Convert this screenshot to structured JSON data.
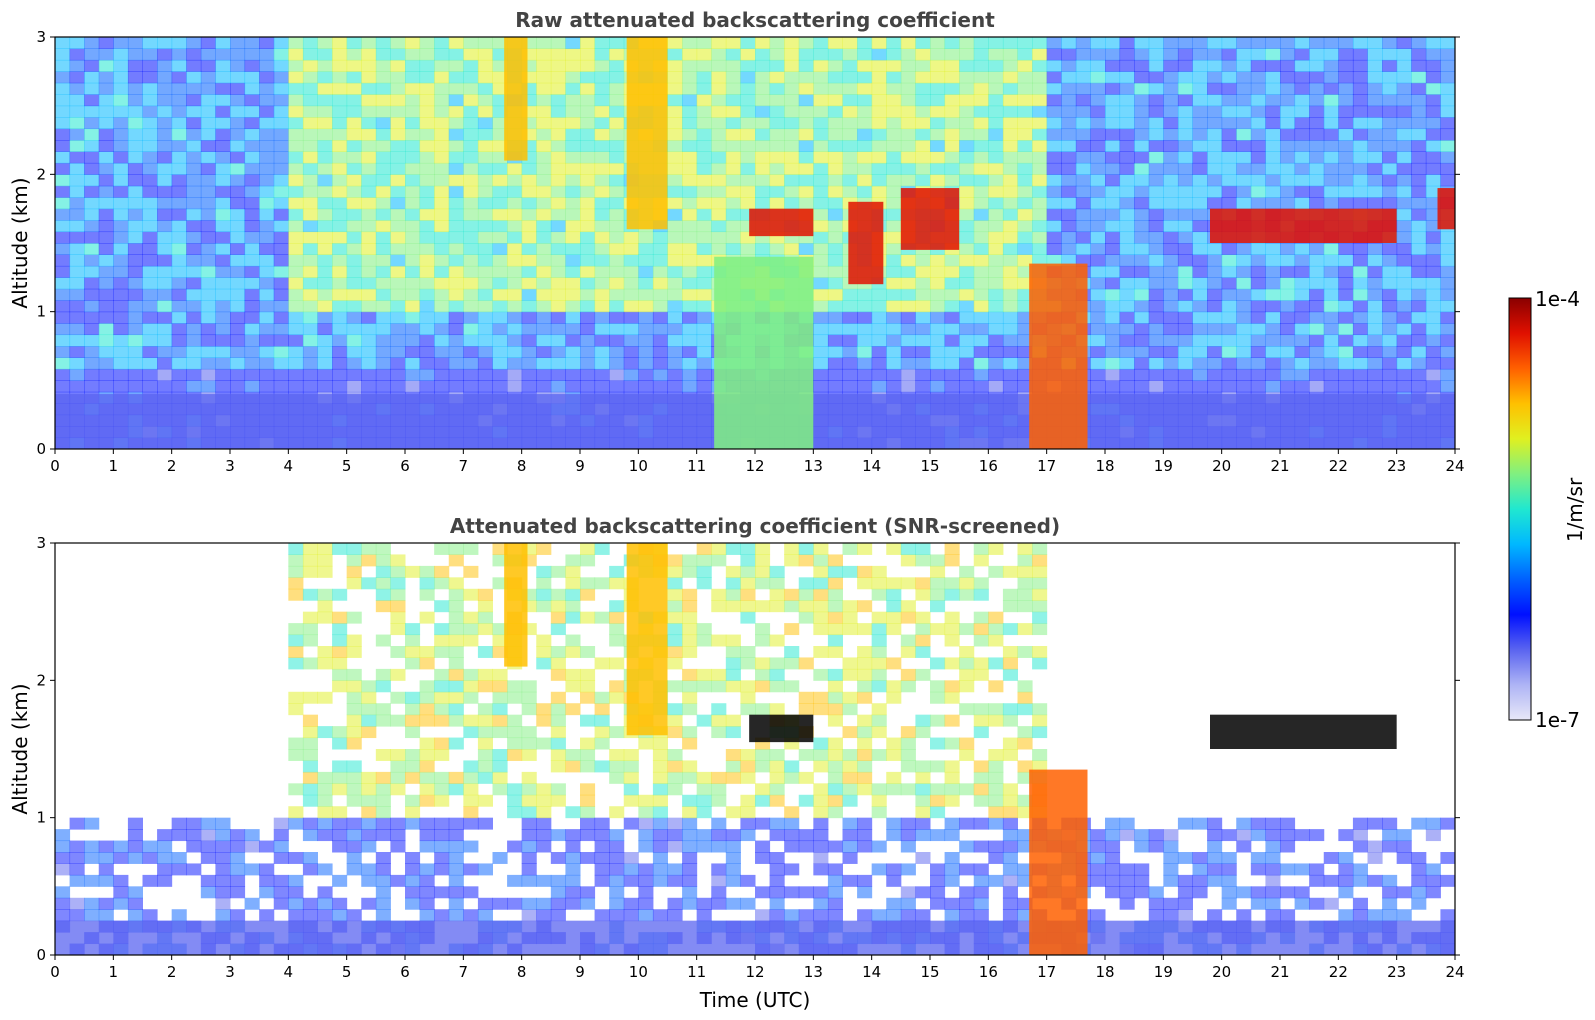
{
  "chart_data": [
    {
      "type": "heatmap",
      "title": "Raw attenuated backscattering coefficient",
      "xlabel": "",
      "ylabel": "Altitude (km)",
      "xlim": [
        0,
        24
      ],
      "ylim": [
        0,
        3
      ],
      "x_ticks": [
        "0",
        "1",
        "2",
        "3",
        "4",
        "5",
        "6",
        "7",
        "8",
        "9",
        "10",
        "11",
        "12",
        "13",
        "14",
        "15",
        "16",
        "17",
        "18",
        "19",
        "20",
        "21",
        "22",
        "23",
        "24"
      ],
      "y_ticks": [
        "0",
        "1",
        "2",
        "3"
      ],
      "screening": "raw",
      "features": [
        {
          "kind": "surface-layer",
          "x": [
            0,
            24
          ],
          "y": [
            0,
            0.4
          ],
          "level": 0.2
        },
        {
          "kind": "cloud",
          "x": [
            11.9,
            13.0
          ],
          "y": [
            1.55,
            1.75
          ],
          "level": 0.95
        },
        {
          "kind": "cloud",
          "x": [
            13.6,
            14.2
          ],
          "y": [
            1.2,
            1.8
          ],
          "level": 0.9
        },
        {
          "kind": "cloud",
          "x": [
            14.5,
            15.5
          ],
          "y": [
            1.45,
            1.9
          ],
          "level": 0.9
        },
        {
          "kind": "cloud",
          "x": [
            19.8,
            23.0
          ],
          "y": [
            1.5,
            1.75
          ],
          "level": 0.95
        },
        {
          "kind": "cloud",
          "x": [
            23.7,
            24.0
          ],
          "y": [
            1.6,
            1.9
          ],
          "level": 0.95
        },
        {
          "kind": "convective-layer",
          "x": [
            16.7,
            17.7
          ],
          "y": [
            0,
            1.35
          ],
          "level": 0.82
        },
        {
          "kind": "convective-layer",
          "x": [
            11.3,
            13.0
          ],
          "y": [
            0,
            1.4
          ],
          "level": 0.6
        },
        {
          "kind": "aerosol-plume",
          "x": [
            7.7,
            8.1
          ],
          "y": [
            2.1,
            3.0
          ],
          "level": 0.78
        },
        {
          "kind": "aerosol-plume",
          "x": [
            9.8,
            10.5
          ],
          "y": [
            1.6,
            3.0
          ],
          "level": 0.78
        }
      ]
    },
    {
      "type": "heatmap",
      "title": "Attenuated backscattering coefficient (SNR-screened)",
      "xlabel": "Time (UTC)",
      "ylabel": "Altitude (km)",
      "xlim": [
        0,
        24
      ],
      "ylim": [
        0,
        3
      ],
      "x_ticks": [
        "0",
        "1",
        "2",
        "3",
        "4",
        "5",
        "6",
        "7",
        "8",
        "9",
        "10",
        "11",
        "12",
        "13",
        "14",
        "15",
        "16",
        "17",
        "18",
        "19",
        "20",
        "21",
        "22",
        "23",
        "24"
      ],
      "y_ticks": [
        "0",
        "1",
        "2",
        "3"
      ],
      "screening": "snr",
      "features": [
        {
          "kind": "surface-layer",
          "x": [
            0,
            24
          ],
          "y": [
            0,
            0.25
          ],
          "level": 0.18
        },
        {
          "kind": "cloud",
          "x": [
            11.9,
            13.0
          ],
          "y": [
            1.55,
            1.75
          ],
          "level": 1.0
        },
        {
          "kind": "cloud",
          "x": [
            19.8,
            23.0
          ],
          "y": [
            1.5,
            1.75
          ],
          "level": 1.0
        },
        {
          "kind": "convective-layer",
          "x": [
            16.7,
            17.7
          ],
          "y": [
            0,
            1.35
          ],
          "level": 0.82
        },
        {
          "kind": "aerosol-plume",
          "x": [
            7.7,
            8.1
          ],
          "y": [
            2.1,
            3.0
          ],
          "level": 0.78
        },
        {
          "kind": "aerosol-plume",
          "x": [
            9.8,
            10.5
          ],
          "y": [
            1.6,
            3.0
          ],
          "level": 0.78
        }
      ]
    }
  ],
  "colorbar": {
    "label": "1/m/sr",
    "max_label": "1e-4",
    "min_label": "1e-7",
    "scale": "log",
    "range": [
      1e-07,
      0.0001
    ],
    "colors": [
      "#e8e8f8",
      "#aeb4f5",
      "#5a64f0",
      "#0010ff",
      "#0060ff",
      "#00b8ff",
      "#20e8d0",
      "#80f080",
      "#e0f020",
      "#ffc000",
      "#ff6000",
      "#e01000",
      "#8a0000"
    ]
  }
}
